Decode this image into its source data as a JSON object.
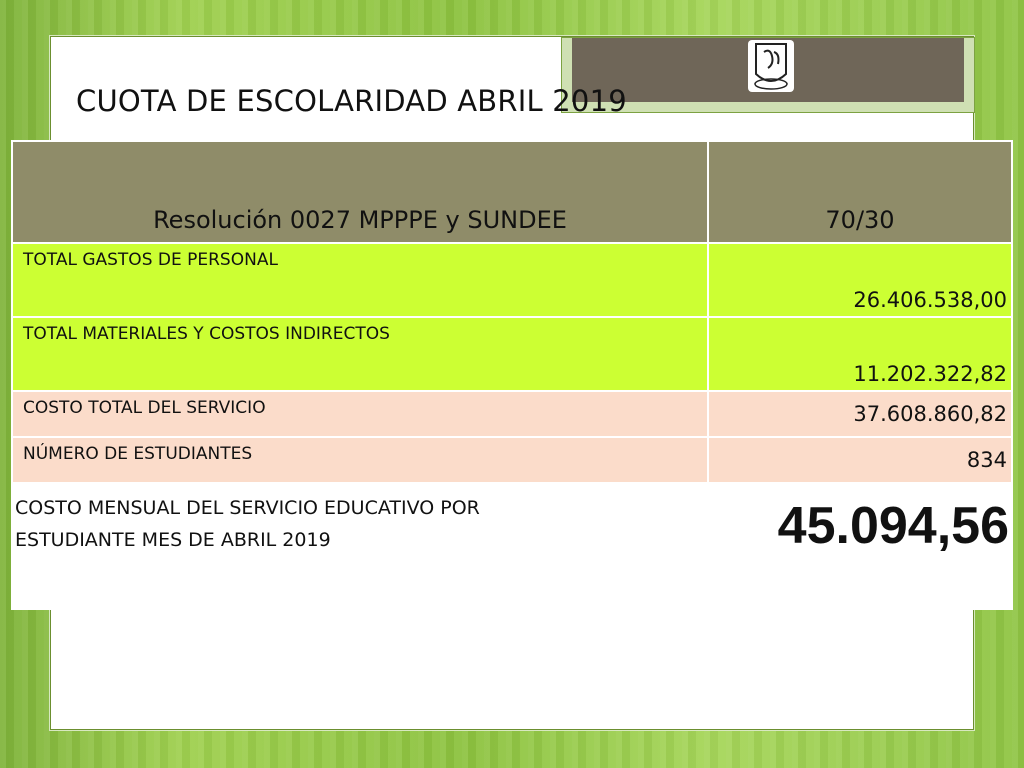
{
  "title": "CUOTA DE ESCOLARIDAD ABRIL 2019",
  "table": {
    "header": {
      "left": "Resolución 0027 MPPPE y  SUNDEE",
      "right": "70/30"
    },
    "rows": [
      {
        "label": "TOTAL GASTOS DE PERSONAL",
        "value": "26.406.538,00"
      },
      {
        "label": "TOTAL MATERIALES Y COSTOS INDIRECTOS",
        "value": "11.202.322,82"
      },
      {
        "label": "COSTO TOTAL DEL SERVICIO",
        "value": "37.608.860,82"
      },
      {
        "label": "NÚMERO DE ESTUDIANTES",
        "value": "834"
      }
    ],
    "final": {
      "line1": "COSTO MENSUAL DEL SERVICIO EDUCATIVO POR",
      "line2": "ESTUDIANTE MES DE ABRIL 2019",
      "value": "45.094,56"
    }
  },
  "colors": {
    "header": "#8f8c69",
    "green_rows": "#ccff33",
    "peach_rows": "#fbdcca"
  },
  "logo": {
    "icon": "school-crest-logo"
  }
}
